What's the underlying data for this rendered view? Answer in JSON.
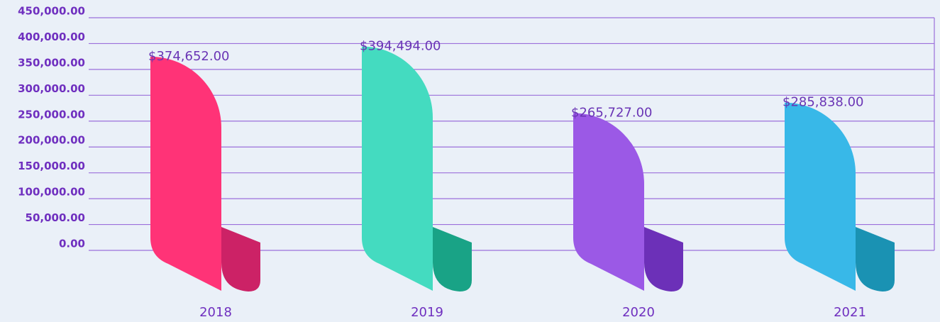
{
  "chart_data": {
    "type": "bar",
    "categories": [
      "2018",
      "2019",
      "2020",
      "2021"
    ],
    "values": [
      374652,
      394494,
      265727,
      285838
    ],
    "value_labels": [
      "$374,652.00",
      "$394,494.00",
      "$265,727.00",
      "$285,838.00"
    ],
    "colors": [
      "#ff3377",
      "#44dbc0",
      "#9b59e6",
      "#38b8e8"
    ],
    "shade_colors": [
      "#cc2266",
      "#19a386",
      "#6c30b8",
      "#1a92b3"
    ],
    "ylim": [
      0,
      450000
    ],
    "yticks": [
      {
        "value": 0,
        "label": "0.00"
      },
      {
        "value": 50000,
        "label": "50,000.00"
      },
      {
        "value": 100000,
        "label": "100,000.00"
      },
      {
        "value": 150000,
        "label": "150,000.00"
      },
      {
        "value": 200000,
        "label": "200,000.00"
      },
      {
        "value": 250000,
        "label": "250,000.00"
      },
      {
        "value": 300000,
        "label": "300,000.00"
      },
      {
        "value": 350000,
        "label": "350,000.00"
      },
      {
        "value": 400000,
        "label": "400,000.00"
      },
      {
        "value": 450000,
        "label": "450,000.00"
      }
    ],
    "grid": true
  }
}
